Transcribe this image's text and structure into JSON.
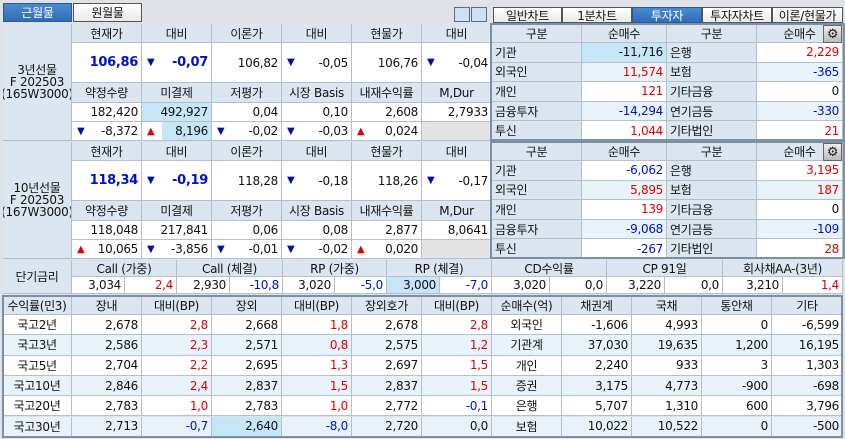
{
  "month_tabs": [
    {
      "label": "근월물",
      "active": true
    },
    {
      "label": "원월물",
      "active": false
    }
  ],
  "view_tabs": [
    {
      "label": "일반차트",
      "active": false
    },
    {
      "label": "1분차트",
      "active": false
    },
    {
      "label": "투자자",
      "active": true
    },
    {
      "label": "투자자차트",
      "active": false
    },
    {
      "label": "이론/현물가",
      "active": false
    }
  ],
  "layout_icons": [
    "layout-horizontal-icon",
    "layout-vertical-icon"
  ],
  "futures": [
    {
      "name_lines": [
        "3년선물",
        "F 202503",
        "(165W3000)"
      ],
      "headers1": [
        "현재가",
        "대비",
        "이론가",
        "대비",
        "현물가",
        "대비"
      ],
      "price_row": [
        "106,86",
        "-0,07",
        "106,82",
        "-0,05",
        "106,76",
        "-0,04"
      ],
      "price_arrows": [
        "",
        "down",
        "",
        "down",
        "",
        "down"
      ],
      "headers2": [
        "약정수량",
        "미결제",
        "저평가",
        "시장 Basis",
        "내재수익률",
        "M,Dur"
      ],
      "stats_row": [
        "182,420",
        "492,927",
        "0,04",
        "0,10",
        "2,608",
        "2,7933"
      ],
      "change_row": [
        "-8,372",
        "8,196",
        "-0,02",
        "-0,03",
        "0,024",
        ""
      ],
      "change_arrows": [
        "down",
        "up",
        "down",
        "down",
        "up",
        ""
      ]
    },
    {
      "name_lines": [
        "10년선물",
        "F 202503",
        "(167W3000)"
      ],
      "headers1": [
        "현재가",
        "대비",
        "이론가",
        "대비",
        "현물가",
        "대비"
      ],
      "price_row": [
        "118,34",
        "-0,19",
        "118,28",
        "-0,18",
        "118,26",
        "-0,17"
      ],
      "price_arrows": [
        "",
        "down",
        "",
        "down",
        "",
        "down"
      ],
      "headers2": [
        "약정수량",
        "미결제",
        "저평가",
        "시장 Basis",
        "내재수익률",
        "M,Dur"
      ],
      "stats_row": [
        "118,048",
        "217,841",
        "0,06",
        "0,08",
        "2,877",
        "8,0641"
      ],
      "change_row": [
        "10,065",
        "-3,856",
        "-0,01",
        "-0,02",
        "0,020",
        ""
      ],
      "change_arrows": [
        "up",
        "down",
        "down",
        "down",
        "up",
        ""
      ]
    }
  ],
  "investors": [
    {
      "headers": [
        "구분",
        "순매수",
        "구분",
        "순매수"
      ],
      "rows": [
        [
          "기관",
          "-11,716",
          "은행",
          "2,229"
        ],
        [
          "외국인",
          "11,574",
          "보험",
          "-365"
        ],
        [
          "개인",
          "121",
          "기타금융",
          "0"
        ],
        [
          "금융투자",
          "-14,294",
          "연기금등",
          "-330"
        ],
        [
          "투신",
          "1,044",
          "기타법인",
          "21"
        ]
      ]
    },
    {
      "headers": [
        "구분",
        "순매수",
        "구분",
        "순매수"
      ],
      "rows": [
        [
          "기관",
          "-6,062",
          "은행",
          "3,195"
        ],
        [
          "외국인",
          "5,895",
          "보험",
          "187"
        ],
        [
          "개인",
          "139",
          "기타금융",
          "0"
        ],
        [
          "금융투자",
          "-9,068",
          "연기금등",
          "-109"
        ],
        [
          "투신",
          "-267",
          "기타법인",
          "28"
        ]
      ]
    }
  ],
  "short_rates": {
    "label": "단기금리",
    "items": [
      {
        "label": "Call (가중)",
        "value": "3,034",
        "change": "2,4"
      },
      {
        "label": "Call (체결)",
        "value": "2,930",
        "change": "-10,8"
      },
      {
        "label": "RP (가중)",
        "value": "3,020",
        "change": "-5,0"
      },
      {
        "label": "RP (체결)",
        "value": "3,000",
        "change": "-7,0"
      },
      {
        "label": "CD수익률",
        "value": "3,020",
        "change": "0,0"
      },
      {
        "label": "CP 91일",
        "value": "3,220",
        "change": "0,0"
      },
      {
        "label": "회사채AA-(3년)",
        "value": "3,210",
        "change": "1,4"
      }
    ]
  },
  "yields": {
    "headers": [
      "수익률(민3)",
      "장내",
      "대비(BP)",
      "장외",
      "대비(BP)",
      "장외호가",
      "대비(BP)"
    ],
    "rows": [
      [
        "국고2년",
        "2,678",
        "2,8",
        "2,668",
        "1,8",
        "2,678",
        "2,8"
      ],
      [
        "국고3년",
        "2,586",
        "2,3",
        "2,571",
        "0,8",
        "2,575",
        "1,2"
      ],
      [
        "국고5년",
        "2,704",
        "2,2",
        "2,695",
        "1,3",
        "2,697",
        "1,5"
      ],
      [
        "국고10년",
        "2,846",
        "2,4",
        "2,837",
        "1,5",
        "2,837",
        "1,5"
      ],
      [
        "국고20년",
        "2,783",
        "1,0",
        "2,783",
        "1,0",
        "2,772",
        "-0,1"
      ],
      [
        "국고30년",
        "2,713",
        "-0,7",
        "2,640",
        "-8,0",
        "2,720",
        "0,0"
      ]
    ]
  },
  "net_buy": {
    "headers": [
      "순매수(억)",
      "채권계",
      "국채",
      "통안채",
      "기타"
    ],
    "rows": [
      [
        "외국인",
        "-1,606",
        "4,993",
        "0",
        "-6,599"
      ],
      [
        "기관계",
        "37,030",
        "19,635",
        "1,200",
        "16,195"
      ],
      [
        "개인",
        "2,240",
        "933",
        "3",
        "1,303"
      ],
      [
        "증권",
        "3,175",
        "4,773",
        "-900",
        "-698"
      ],
      [
        "은행",
        "5,707",
        "1,310",
        "600",
        "3,796"
      ],
      [
        "보험",
        "10,022",
        "10,522",
        "0",
        "-500"
      ]
    ]
  },
  "colors": {
    "up": "#e00000",
    "down": "#0010c8",
    "accent": "#2f6eb5",
    "header_bg": "#dce6f1",
    "highlight": "#c6e6f8"
  }
}
